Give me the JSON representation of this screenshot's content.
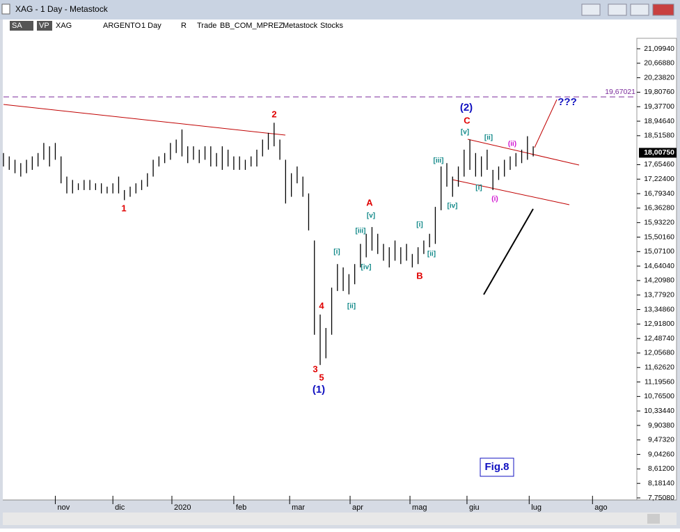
{
  "window_title": "XAG - 1 Day - Metastock",
  "toolbar": [
    "SA",
    "VP",
    "XAG",
    "ARGENTO",
    "1 Day",
    "R",
    "Trade",
    "BB_COM_MPREZ",
    "Metastock",
    "Stocks"
  ],
  "chart_data": {
    "type": "hilo",
    "series": [
      {
        "name": "XAG",
        "color": "#000000",
        "x": [
          0,
          2,
          4,
          6,
          8,
          10,
          12,
          14,
          16,
          18,
          20,
          22,
          24,
          26,
          28,
          30,
          32,
          34,
          36,
          38,
          40,
          42,
          44,
          46,
          48,
          50,
          52,
          54,
          56,
          58,
          60,
          62,
          64,
          66,
          68,
          70,
          72,
          74,
          76,
          78,
          80,
          82,
          84,
          86,
          88,
          90,
          92,
          94,
          96,
          98,
          100,
          102,
          104,
          106,
          108,
          110,
          112,
          114,
          116,
          118,
          120,
          122,
          124,
          126,
          128,
          130,
          132,
          134,
          136,
          138,
          140,
          142,
          144,
          146,
          148,
          150,
          152,
          154,
          156,
          158,
          160,
          162,
          164,
          166,
          168,
          170,
          172,
          174,
          176,
          178,
          180,
          182,
          184
        ],
        "high": [
          18.0,
          17.9,
          17.8,
          17.7,
          17.8,
          17.9,
          18.0,
          18.3,
          18.2,
          18.3,
          17.9,
          17.3,
          17.2,
          17.1,
          17.2,
          17.2,
          17.1,
          17.1,
          17.0,
          17.1,
          17.3,
          16.9,
          17.0,
          17.1,
          17.2,
          17.4,
          17.8,
          17.9,
          18.0,
          18.3,
          18.4,
          18.7,
          18.2,
          18.2,
          18.1,
          18.2,
          18.2,
          18.0,
          18.2,
          18.1,
          17.9,
          17.9,
          17.8,
          17.9,
          18.1,
          18.4,
          18.6,
          18.9,
          18.4,
          17.8,
          17.4,
          17.6,
          17.3,
          16.8,
          15.4,
          13.2,
          12.8,
          14.0,
          14.7,
          14.6,
          14.4,
          14.7,
          15.3,
          15.6,
          15.8,
          15.6,
          15.3,
          15.2,
          15.4,
          15.2,
          15.3,
          15.0,
          15.2,
          15.4,
          15.6,
          16.4,
          17.6,
          17.7,
          17.3,
          17.6,
          18.1,
          18.4,
          18.0,
          17.9,
          18.1,
          17.5,
          17.6,
          17.8,
          17.9,
          18.0,
          18.1,
          18.5,
          18.2
        ],
        "low": [
          17.6,
          17.5,
          17.4,
          17.3,
          17.4,
          17.5,
          17.6,
          17.8,
          17.6,
          17.8,
          17.1,
          16.8,
          16.8,
          16.9,
          16.9,
          16.9,
          16.9,
          16.8,
          16.8,
          16.8,
          16.8,
          16.6,
          16.7,
          16.8,
          16.9,
          17.0,
          17.3,
          17.6,
          17.7,
          17.8,
          18.0,
          17.9,
          17.7,
          17.8,
          17.7,
          17.8,
          17.6,
          17.6,
          17.5,
          17.6,
          17.5,
          17.5,
          17.5,
          17.6,
          17.6,
          17.9,
          18.1,
          18.2,
          17.8,
          16.5,
          16.7,
          17.1,
          16.7,
          15.7,
          12.6,
          11.7,
          11.9,
          12.6,
          13.9,
          13.9,
          13.8,
          14.1,
          14.6,
          14.9,
          15.1,
          15.0,
          14.8,
          14.6,
          14.8,
          14.7,
          14.8,
          14.6,
          14.7,
          15.0,
          15.2,
          15.3,
          16.3,
          17.0,
          16.7,
          17.0,
          17.3,
          17.5,
          17.3,
          17.3,
          17.5,
          16.9,
          17.2,
          17.3,
          17.5,
          17.6,
          17.7,
          17.8,
          17.9
        ]
      }
    ],
    "ylim": [
      7.689,
      21.41
    ],
    "yticks": [
      {
        "value": 21.0994,
        "label": "21,09940"
      },
      {
        "value": 20.6688,
        "label": "20,66880"
      },
      {
        "value": 20.2382,
        "label": "20,23820"
      },
      {
        "value": 19.8076,
        "label": "19,80760"
      },
      {
        "value": 19.377,
        "label": "19,37700"
      },
      {
        "value": 18.9464,
        "label": "18,94640"
      },
      {
        "value": 18.5158,
        "label": "18,51580"
      },
      {
        "value": 17.6546,
        "label": "17,65460"
      },
      {
        "value": 17.224,
        "label": "17,22400"
      },
      {
        "value": 16.7934,
        "label": "16,79340"
      },
      {
        "value": 16.3628,
        "label": "16,36280"
      },
      {
        "value": 15.9322,
        "label": "15,93220"
      },
      {
        "value": 15.5016,
        "label": "15,50160"
      },
      {
        "value": 15.071,
        "label": "15,07100"
      },
      {
        "value": 14.6404,
        "label": "14,64040"
      },
      {
        "value": 14.2098,
        "label": "14,20980"
      },
      {
        "value": 13.7792,
        "label": "13,77920"
      },
      {
        "value": 13.3486,
        "label": "13,34860"
      },
      {
        "value": 12.918,
        "label": "12,91800"
      },
      {
        "value": 12.4874,
        "label": "12,48740"
      },
      {
        "value": 12.0568,
        "label": "12,05680"
      },
      {
        "value": 11.6262,
        "label": "11,62620"
      },
      {
        "value": 11.1956,
        "label": "11,19560"
      },
      {
        "value": 10.765,
        "label": "10,76500"
      },
      {
        "value": 10.3344,
        "label": "10,33440"
      },
      {
        "value": 9.9038,
        "label": "9,90380"
      },
      {
        "value": 9.4732,
        "label": "9,47320"
      },
      {
        "value": 9.0426,
        "label": "9,04260"
      },
      {
        "value": 8.612,
        "label": "8,61200"
      },
      {
        "value": 8.1814,
        "label": "8,18140"
      },
      {
        "value": 7.7508,
        "label": "7,75080"
      }
    ],
    "xlim": [
      0,
      220
    ],
    "xticks": [
      {
        "value": 18,
        "label": "nov"
      },
      {
        "value": 38,
        "label": "dic"
      },
      {
        "value": 58.5,
        "label": "2020"
      },
      {
        "value": 80,
        "label": "feb"
      },
      {
        "value": 99.4,
        "label": "mar"
      },
      {
        "value": 120.4,
        "label": "apr"
      },
      {
        "value": 141.2,
        "label": "mag"
      },
      {
        "value": 161,
        "label": "giu"
      },
      {
        "value": 182.6,
        "label": "lug"
      },
      {
        "value": 204.6,
        "label": "ago"
      }
    ],
    "last_price": {
      "value": 18.0075,
      "label": "18,00750"
    },
    "level_line": {
      "value": 19.67021,
      "label": "19,67021",
      "color": "#7a2a9a"
    },
    "annotations": [
      {
        "text": "1",
        "color": "#e00000"
      },
      {
        "text": "2",
        "color": "#e00000"
      },
      {
        "text": "3",
        "color": "#e00000"
      },
      {
        "text": "4",
        "color": "#e00000"
      },
      {
        "text": "5",
        "color": "#e00000"
      },
      {
        "text": "(1)",
        "color": "#1010c0"
      },
      {
        "text": "A",
        "color": "#e00000"
      },
      {
        "text": "[v]",
        "color": "#108888"
      },
      {
        "text": "[iii]",
        "color": "#108888"
      },
      {
        "text": "[i]",
        "color": "#108888"
      },
      {
        "text": "[iv]",
        "color": "#108888"
      },
      {
        "text": "[ii]",
        "color": "#108888"
      },
      {
        "text": "B",
        "color": "#e00000"
      },
      {
        "text": "[i]",
        "color": "#108888"
      },
      {
        "text": "[ii]",
        "color": "#108888"
      },
      {
        "text": "[iii]",
        "color": "#108888"
      },
      {
        "text": "[iv]",
        "color": "#108888"
      },
      {
        "text": "C",
        "color": "#e00000"
      },
      {
        "text": "(2)",
        "color": "#1010c0"
      },
      {
        "text": "[v]",
        "color": "#108888"
      },
      {
        "text": "[ii]",
        "color": "#108888"
      },
      {
        "text": "[i]",
        "color": "#108888"
      },
      {
        "text": "(ii)",
        "color": "#d010d0"
      },
      {
        "text": "(i)",
        "color": "#d010d0"
      },
      {
        "text": "???",
        "color": "#1010c0"
      },
      {
        "text": "Fig.8",
        "color": "#1010c0"
      }
    ]
  }
}
